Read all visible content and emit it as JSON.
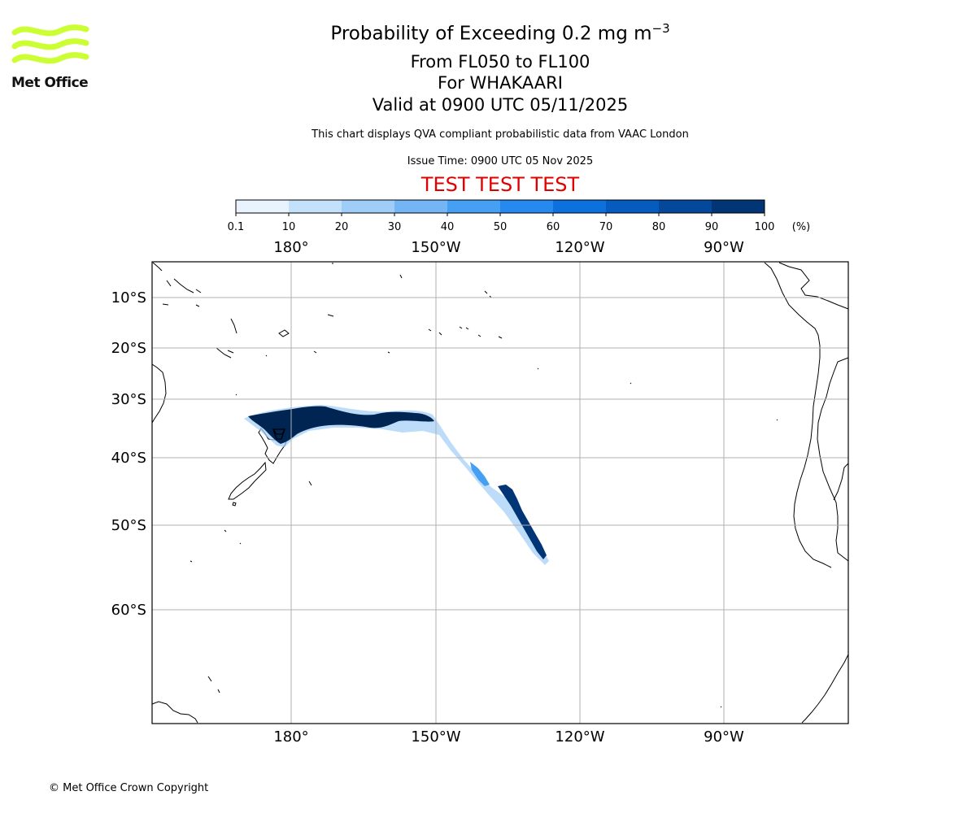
{
  "header": {
    "title": "Probability of Exceeding 0.2 mg m",
    "title_superscript": "−3",
    "subtitle_levels": "From FL050 to FL100",
    "subtitle_volcano": "For WHAKAARI",
    "subtitle_valid": "Valid at 0900 UTC 05/11/2025",
    "disclaimer": "This chart displays QVA compliant probabilistic data from VAAC London",
    "issue_time": "Issue Time: 0900 UTC 05 Nov 2025",
    "test_banner": "TEST TEST TEST"
  },
  "logo": {
    "text": "Met Office",
    "color": "#ccff33"
  },
  "footer": {
    "copyright": "© Met Office Crown Copyright"
  },
  "colorbar": {
    "ticks": [
      "0.1",
      "10",
      "20",
      "30",
      "40",
      "50",
      "60",
      "70",
      "80",
      "90",
      "100"
    ],
    "unit": "(%)",
    "colors": [
      "#e8f3fe",
      "#c4e1fb",
      "#9fcdf8",
      "#74b6f5",
      "#45a0f3",
      "#2589ef",
      "#0c70dd",
      "#055cbe",
      "#03489a",
      "#023575",
      "#012552"
    ]
  },
  "map": {
    "lon_labels": [
      "180°",
      "150°W",
      "120°W",
      "90°W"
    ],
    "lat_labels": [
      "10°S",
      "20°S",
      "30°S",
      "40°S",
      "50°S",
      "60°S"
    ],
    "lon_ticks": [
      180,
      150,
      120,
      90
    ],
    "lat_ticks": [
      10,
      20,
      30,
      40,
      50,
      60
    ],
    "gridline_color": "#b0b0b0",
    "plume_color": "#012552",
    "volcano_marker": "WHAKAARI"
  }
}
